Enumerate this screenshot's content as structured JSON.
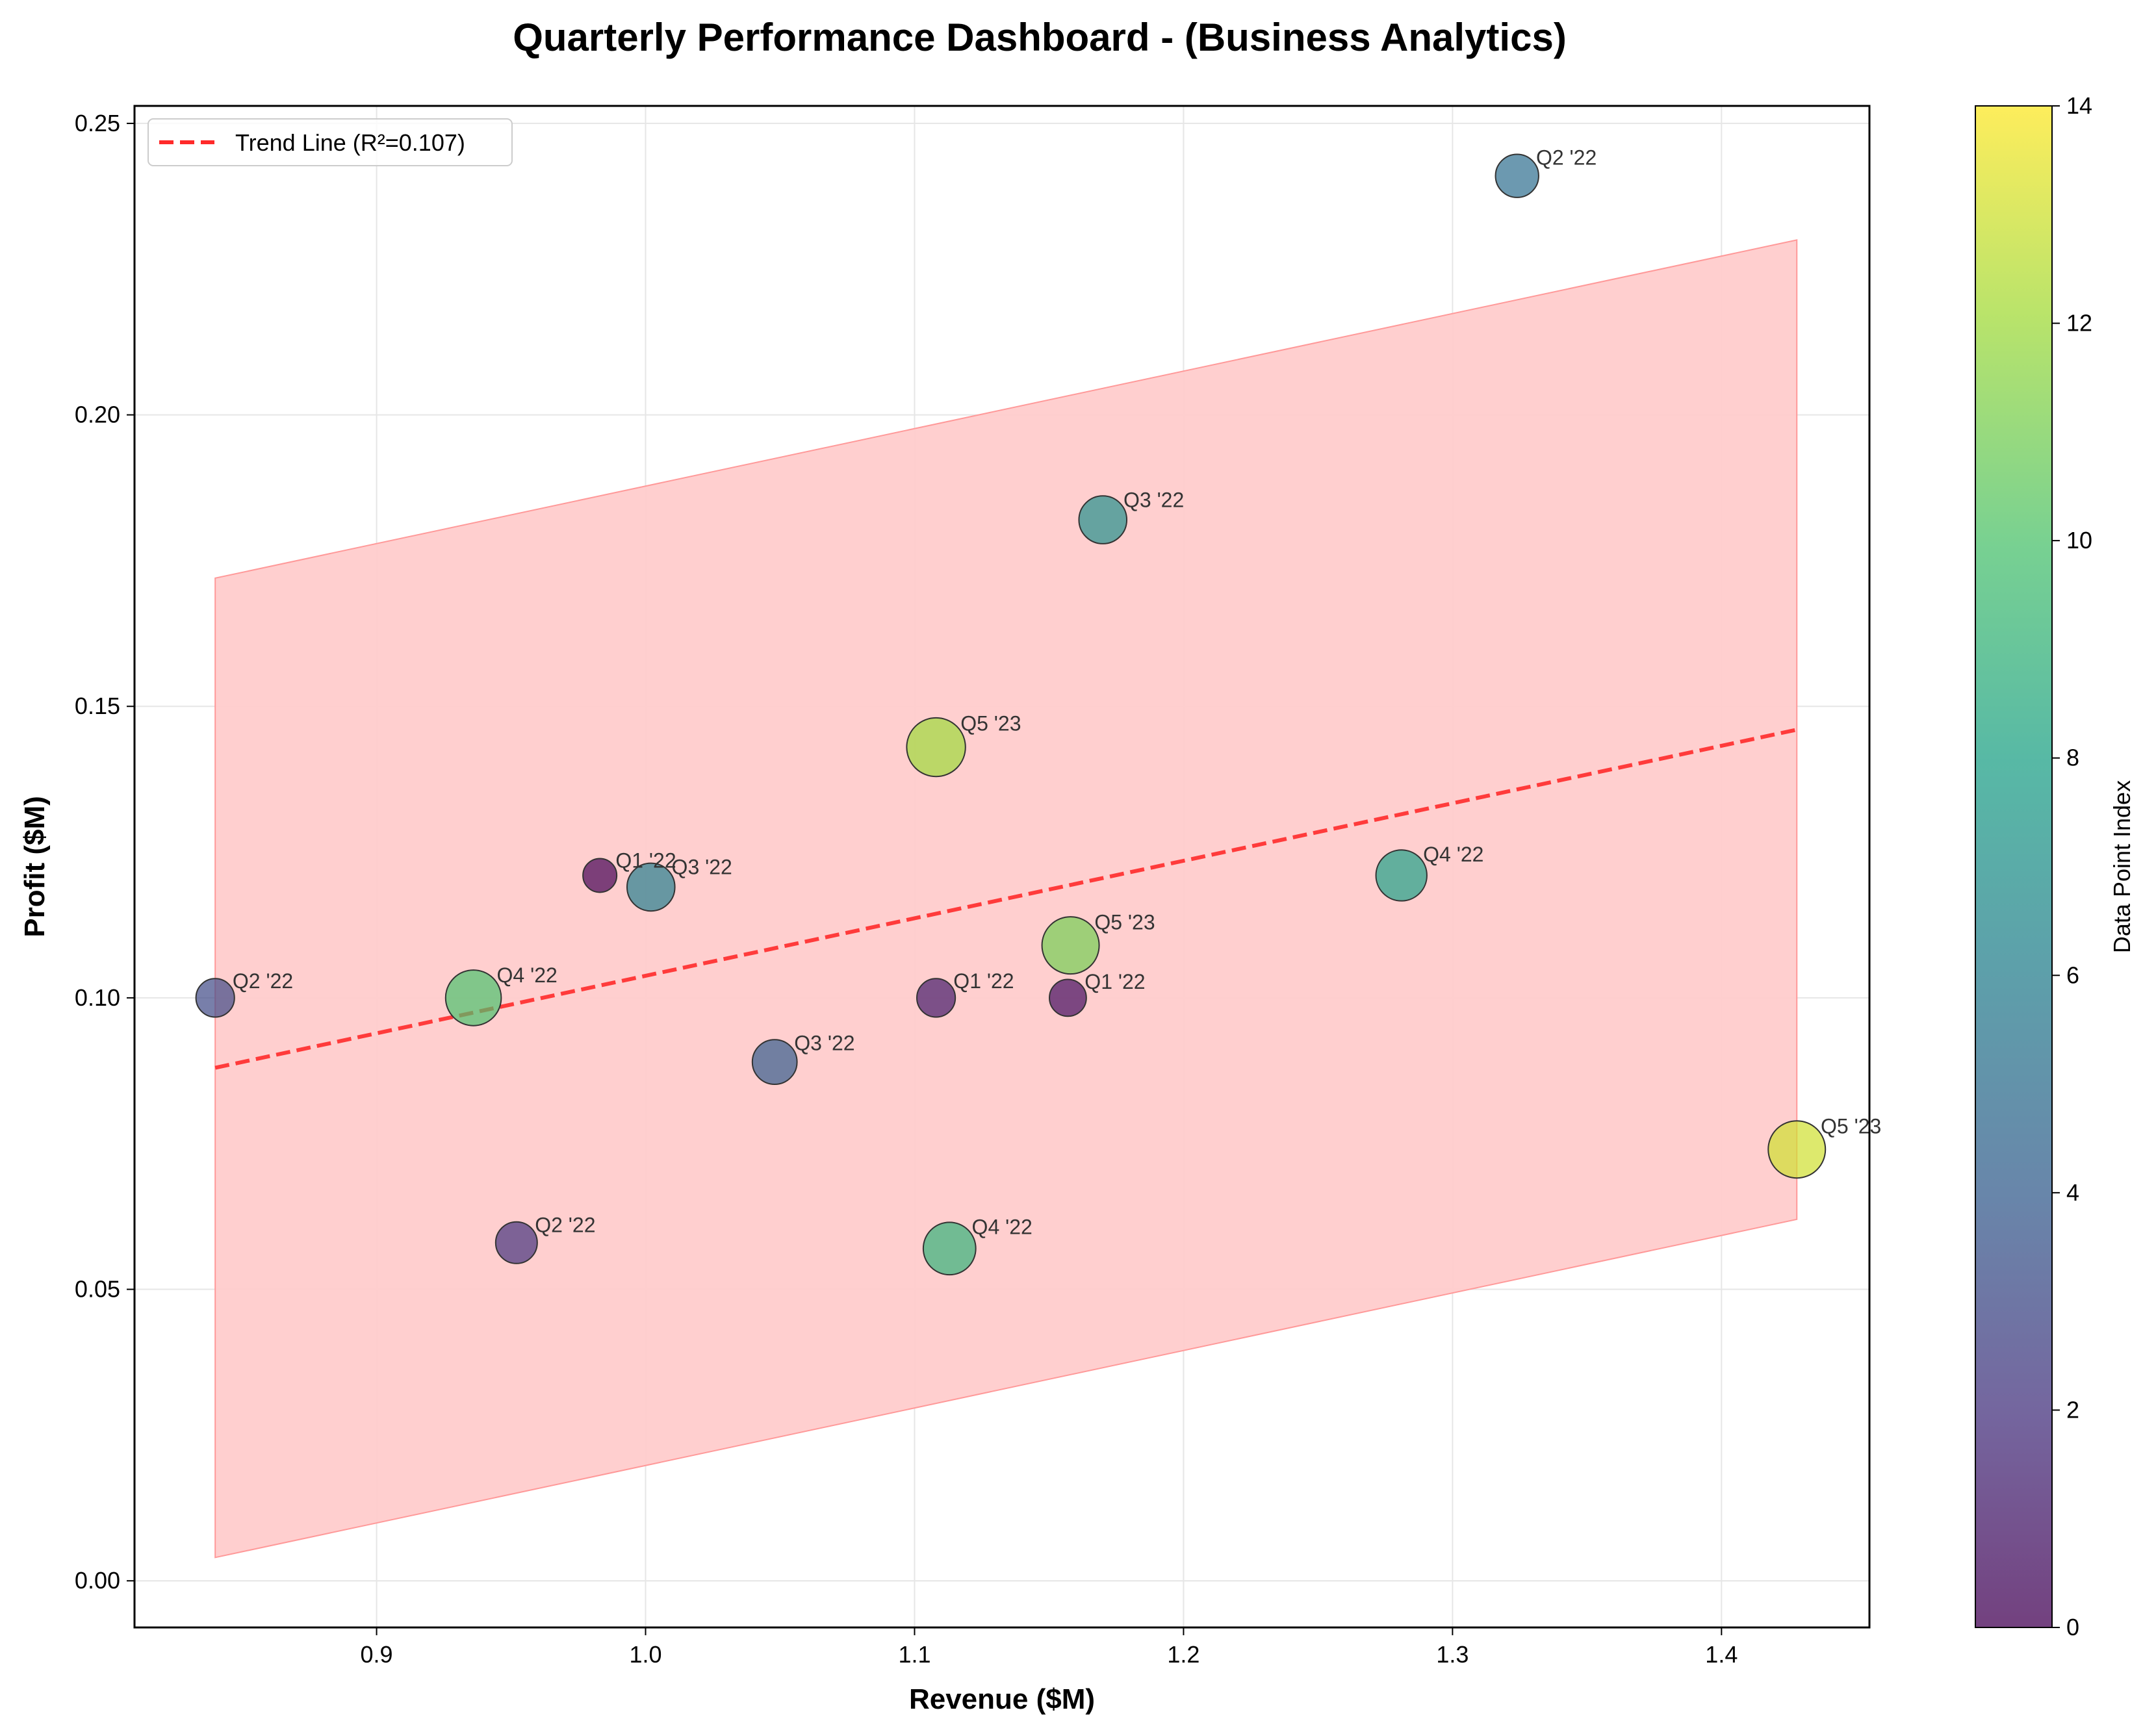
{
  "chart_data": {
    "type": "scatter",
    "title": "Quarterly Performance Dashboard - (Business Analytics)",
    "xlabel": "Revenue ($M)",
    "ylabel": "Profit ($M)",
    "xlim": [
      0.81,
      1.455
    ],
    "ylim": [
      -0.008,
      0.253
    ],
    "xticks": [
      0.9,
      1.0,
      1.1,
      1.2,
      1.3,
      1.4
    ],
    "xtick_labels": [
      "0.9",
      "1.0",
      "1.1",
      "1.2",
      "1.3",
      "1.4"
    ],
    "yticks": [
      0.0,
      0.05,
      0.1,
      0.15,
      0.2,
      0.25
    ],
    "ytick_labels": [
      "0.00",
      "0.05",
      "0.10",
      "0.15",
      "0.20",
      "0.25"
    ],
    "grid": true,
    "legend": {
      "placement": "top-left",
      "entries": [
        "Trend Line (R²=0.107)"
      ]
    },
    "trend_line": {
      "label": "Trend Line (R²=0.107)",
      "x": [
        0.84,
        1.428
      ],
      "y": [
        0.088,
        0.146
      ],
      "color": "#ff2a2a"
    },
    "confidence_band": {
      "x": [
        0.84,
        1.428
      ],
      "upper": [
        0.172,
        0.23
      ],
      "lower": [
        0.004,
        0.062
      ],
      "color": "#ffcccc"
    },
    "colorbar": {
      "label": "Data Point Index",
      "range": [
        0,
        14
      ],
      "ticks": [
        0,
        2,
        4,
        6,
        8,
        10,
        12,
        14
      ],
      "tick_labels": [
        "0",
        "2",
        "4",
        "6",
        "8",
        "10",
        "12",
        "14"
      ]
    },
    "points": [
      {
        "x": 0.983,
        "y": 0.121,
        "label": "Q1 '22",
        "index": 0,
        "size": 1
      },
      {
        "x": 1.157,
        "y": 0.1,
        "label": "Q1 '22",
        "index": 0.5,
        "size": 1.2
      },
      {
        "x": 1.108,
        "y": 0.1,
        "label": "Q1 '22",
        "index": 1,
        "size": 1.3
      },
      {
        "x": 0.952,
        "y": 0.058,
        "label": "Q2 '22",
        "index": 2,
        "size": 1.5
      },
      {
        "x": 0.84,
        "y": 0.1,
        "label": "Q2 '22",
        "index": 3,
        "size": 1.3
      },
      {
        "x": 1.324,
        "y": 0.241,
        "label": "Q2 '22",
        "index": 5,
        "size": 1.6
      },
      {
        "x": 1.048,
        "y": 0.089,
        "label": "Q3 '22",
        "index": 4,
        "size": 1.7
      },
      {
        "x": 1.002,
        "y": 0.119,
        "label": "Q3 '22",
        "index": 6,
        "size": 1.9
      },
      {
        "x": 1.17,
        "y": 0.182,
        "label": "Q3 '22",
        "index": 7,
        "size": 1.9
      },
      {
        "x": 1.281,
        "y": 0.121,
        "label": "Q4 '22",
        "index": 8,
        "size": 2.1
      },
      {
        "x": 1.113,
        "y": 0.057,
        "label": "Q4 '22",
        "index": 9,
        "size": 2.2
      },
      {
        "x": 0.936,
        "y": 0.1,
        "label": "Q4 '22",
        "index": 10,
        "size": 2.4
      },
      {
        "x": 1.158,
        "y": 0.109,
        "label": "Q5 '23",
        "index": 11,
        "size": 2.5
      },
      {
        "x": 1.108,
        "y": 0.143,
        "label": "Q5 '23",
        "index": 12,
        "size": 2.6
      },
      {
        "x": 1.428,
        "y": 0.074,
        "label": "Q5 '23",
        "index": 13,
        "size": 2.5
      }
    ]
  }
}
